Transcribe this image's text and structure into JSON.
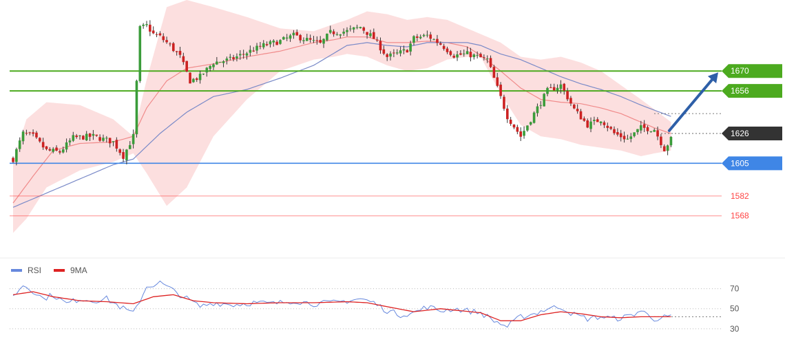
{
  "chart_data": [
    {
      "type": "candlestick",
      "title": "",
      "x_count": 130,
      "price_range": [
        1548,
        1720
      ],
      "colors": {
        "up": "#3a9c3a",
        "down": "#cc2222",
        "wick": "#333333",
        "band": "#fbd4d4",
        "ma_fast": "#f08a8a",
        "ma_slow": "#7a8ac8"
      },
      "anchors": {
        "close": [
          [
            0,
            1608
          ],
          [
            3,
            1626
          ],
          [
            6,
            1624
          ],
          [
            10,
            1614
          ],
          [
            14,
            1613
          ],
          [
            18,
            1623
          ],
          [
            24,
            1624
          ],
          [
            30,
            1620
          ],
          [
            33,
            1610
          ],
          [
            36,
            1624
          ],
          [
            38,
            1700
          ],
          [
            40,
            1702
          ],
          [
            42,
            1696
          ],
          [
            44,
            1694
          ],
          [
            47,
            1688
          ],
          [
            50,
            1680
          ],
          [
            53,
            1663
          ],
          [
            56,
            1666
          ],
          [
            60,
            1676
          ],
          [
            65,
            1678
          ],
          [
            70,
            1683
          ],
          [
            75,
            1688
          ],
          [
            80,
            1691
          ],
          [
            84,
            1695
          ],
          [
            88,
            1692
          ],
          [
            92,
            1689
          ],
          [
            95,
            1697
          ],
          [
            100,
            1698
          ],
          [
            104,
            1701
          ],
          [
            108,
            1693
          ],
          [
            112,
            1680
          ],
          [
            116,
            1683
          ],
          [
            118,
            1685
          ],
          [
            120,
            1693
          ],
          [
            124,
            1695
          ],
          [
            128,
            1689
          ],
          [
            132,
            1681
          ],
          [
            136,
            1682
          ],
          [
            139,
            1680
          ],
          [
            142,
            1678
          ],
          [
            145,
            1658
          ],
          [
            148,
            1638
          ],
          [
            152,
            1624
          ],
          [
            156,
            1640
          ],
          [
            160,
            1656
          ],
          [
            164,
            1660
          ],
          [
            168,
            1643
          ],
          [
            172,
            1632
          ],
          [
            176,
            1636
          ],
          [
            180,
            1626
          ],
          [
            184,
            1622
          ],
          [
            188,
            1630
          ],
          [
            192,
            1629
          ],
          [
            195,
            1615
          ],
          [
            197,
            1622
          ]
        ],
        "ma_fast": [
          [
            0,
            1577
          ],
          [
            6,
            1596
          ],
          [
            12,
            1614
          ],
          [
            20,
            1619
          ],
          [
            30,
            1620
          ],
          [
            36,
            1624
          ],
          [
            40,
            1644
          ],
          [
            46,
            1663
          ],
          [
            52,
            1672
          ],
          [
            60,
            1675
          ],
          [
            70,
            1680
          ],
          [
            80,
            1684
          ],
          [
            90,
            1690
          ],
          [
            96,
            1692
          ],
          [
            100,
            1694
          ],
          [
            106,
            1694
          ],
          [
            112,
            1690
          ],
          [
            118,
            1690
          ],
          [
            124,
            1691
          ],
          [
            130,
            1690
          ],
          [
            136,
            1687
          ],
          [
            140,
            1681
          ],
          [
            146,
            1670
          ],
          [
            152,
            1658
          ],
          [
            158,
            1650
          ],
          [
            164,
            1648
          ],
          [
            170,
            1647
          ],
          [
            176,
            1644
          ],
          [
            182,
            1640
          ],
          [
            188,
            1634
          ],
          [
            192,
            1630
          ],
          [
            197,
            1626
          ]
        ],
        "ma_slow": [
          [
            0,
            1574
          ],
          [
            10,
            1584
          ],
          [
            20,
            1594
          ],
          [
            30,
            1604
          ],
          [
            36,
            1608
          ],
          [
            44,
            1626
          ],
          [
            52,
            1641
          ],
          [
            60,
            1652
          ],
          [
            70,
            1657
          ],
          [
            80,
            1665
          ],
          [
            90,
            1674
          ],
          [
            100,
            1688
          ],
          [
            106,
            1690
          ],
          [
            112,
            1688
          ],
          [
            118,
            1687
          ],
          [
            124,
            1690
          ],
          [
            130,
            1690
          ],
          [
            136,
            1690
          ],
          [
            140,
            1688
          ],
          [
            146,
            1682
          ],
          [
            152,
            1678
          ],
          [
            158,
            1672
          ],
          [
            164,
            1666
          ],
          [
            170,
            1661
          ],
          [
            176,
            1657
          ],
          [
            182,
            1652
          ],
          [
            188,
            1646
          ],
          [
            197,
            1638
          ]
        ],
        "band_upper": [
          [
            0,
            1606
          ],
          [
            4,
            1636
          ],
          [
            10,
            1648
          ],
          [
            20,
            1646
          ],
          [
            30,
            1636
          ],
          [
            36,
            1624
          ],
          [
            40,
            1664
          ],
          [
            46,
            1715
          ],
          [
            52,
            1720
          ],
          [
            60,
            1715
          ],
          [
            70,
            1708
          ],
          [
            80,
            1700
          ],
          [
            90,
            1698
          ],
          [
            96,
            1703
          ],
          [
            100,
            1706
          ],
          [
            106,
            1712
          ],
          [
            112,
            1710
          ],
          [
            118,
            1706
          ],
          [
            124,
            1708
          ],
          [
            130,
            1706
          ],
          [
            136,
            1700
          ],
          [
            140,
            1696
          ],
          [
            146,
            1690
          ],
          [
            152,
            1680
          ],
          [
            158,
            1678
          ],
          [
            164,
            1680
          ],
          [
            170,
            1676
          ],
          [
            176,
            1670
          ],
          [
            182,
            1660
          ],
          [
            188,
            1650
          ],
          [
            192,
            1643
          ],
          [
            197,
            1634
          ]
        ],
        "band_lower": [
          [
            0,
            1556
          ],
          [
            4,
            1566
          ],
          [
            10,
            1588
          ],
          [
            20,
            1600
          ],
          [
            30,
            1606
          ],
          [
            36,
            1612
          ],
          [
            40,
            1598
          ],
          [
            46,
            1575
          ],
          [
            52,
            1588
          ],
          [
            60,
            1624
          ],
          [
            70,
            1650
          ],
          [
            80,
            1670
          ],
          [
            90,
            1678
          ],
          [
            96,
            1680
          ],
          [
            100,
            1682
          ],
          [
            106,
            1680
          ],
          [
            112,
            1674
          ],
          [
            118,
            1670
          ],
          [
            124,
            1672
          ],
          [
            130,
            1678
          ],
          [
            136,
            1680
          ],
          [
            140,
            1680
          ],
          [
            146,
            1654
          ],
          [
            152,
            1632
          ],
          [
            158,
            1624
          ],
          [
            164,
            1622
          ],
          [
            170,
            1618
          ],
          [
            176,
            1616
          ],
          [
            182,
            1614
          ],
          [
            188,
            1610
          ],
          [
            192,
            1612
          ],
          [
            197,
            1614
          ]
        ]
      },
      "levels": [
        {
          "value": 1670,
          "label": "1670",
          "style": "box",
          "color": "#4caa1f",
          "line": "solid"
        },
        {
          "value": 1656,
          "label": "1656",
          "style": "box",
          "color": "#4caa1f",
          "line": "solid"
        },
        {
          "value": 1626,
          "label": "1626",
          "style": "box",
          "color": "#333333",
          "line": "dotted"
        },
        {
          "value": 1605,
          "label": "1605",
          "style": "box",
          "color": "#3f86e6",
          "line": "solid"
        },
        {
          "value": 1582,
          "label": "1582",
          "style": "text",
          "color": "#ff4444",
          "line": "solid"
        },
        {
          "value": 1568,
          "label": "1568",
          "style": "text",
          "color": "#ff4444",
          "line": "solid"
        }
      ],
      "dotted_marker_value": 1640,
      "arrow": {
        "from_index": 129,
        "from_value": 1628,
        "to_index": 136,
        "to_value": 1670,
        "color": "#2e5fa8"
      }
    },
    {
      "type": "line",
      "title": "",
      "legend": [
        {
          "name": "RSI",
          "color": "#6688dd"
        },
        {
          "name": "9MA",
          "color": "#dd2222"
        }
      ],
      "ylim": [
        23,
        78
      ],
      "y_ticks": [
        70,
        50,
        30
      ],
      "reference_value": 42,
      "series": [
        {
          "name": "RSI",
          "anchors": [
            [
              0,
              62
            ],
            [
              3,
              74
            ],
            [
              6,
              68
            ],
            [
              9,
              60
            ],
            [
              12,
              64
            ],
            [
              16,
              55
            ],
            [
              20,
              60
            ],
            [
              24,
              58
            ],
            [
              28,
              60
            ],
            [
              32,
              52
            ],
            [
              36,
              45
            ],
            [
              40,
              72
            ],
            [
              44,
              76
            ],
            [
              48,
              68
            ],
            [
              52,
              60
            ],
            [
              56,
              52
            ],
            [
              60,
              56
            ],
            [
              66,
              54
            ],
            [
              72,
              56
            ],
            [
              78,
              55
            ],
            [
              84,
              58
            ],
            [
              90,
              55
            ],
            [
              96,
              56
            ],
            [
              100,
              58
            ],
            [
              104,
              60
            ],
            [
              108,
              56
            ],
            [
              112,
              48
            ],
            [
              116,
              44
            ],
            [
              120,
              46
            ],
            [
              124,
              52
            ],
            [
              128,
              48
            ],
            [
              132,
              50
            ],
            [
              136,
              48
            ],
            [
              140,
              46
            ],
            [
              144,
              38
            ],
            [
              148,
              32
            ],
            [
              152,
              42
            ],
            [
              156,
              45
            ],
            [
              160,
              50
            ],
            [
              164,
              52
            ],
            [
              168,
              44
            ],
            [
              172,
              40
            ],
            [
              176,
              42
            ],
            [
              180,
              40
            ],
            [
              184,
              42
            ],
            [
              188,
              48
            ],
            [
              192,
              40
            ],
            [
              197,
              42
            ]
          ]
        },
        {
          "name": "9MA",
          "anchors": [
            [
              0,
              64
            ],
            [
              6,
              67
            ],
            [
              12,
              62
            ],
            [
              20,
              58
            ],
            [
              28,
              57
            ],
            [
              36,
              55
            ],
            [
              42,
              62
            ],
            [
              48,
              64
            ],
            [
              54,
              58
            ],
            [
              60,
              56
            ],
            [
              70,
              55
            ],
            [
              80,
              56
            ],
            [
              90,
              56
            ],
            [
              100,
              57
            ],
            [
              106,
              56
            ],
            [
              112,
              52
            ],
            [
              120,
              47
            ],
            [
              128,
              50
            ],
            [
              134,
              48
            ],
            [
              140,
              46
            ],
            [
              146,
              38
            ],
            [
              152,
              38
            ],
            [
              158,
              44
            ],
            [
              164,
              47
            ],
            [
              170,
              45
            ],
            [
              176,
              42
            ],
            [
              182,
              41
            ],
            [
              188,
              42
            ],
            [
              197,
              42
            ]
          ]
        }
      ]
    }
  ]
}
